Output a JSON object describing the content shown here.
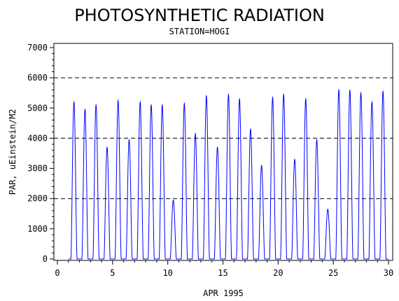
{
  "chart_data": {
    "type": "line",
    "title": "PHOTOSYNTHETIC RADIATION",
    "subtitle": "STATION=HOGI",
    "xlabel": "APR 1995",
    "ylabel": "PAR, uEinstein/M2",
    "xlim": [
      0,
      30
    ],
    "ylim": [
      0,
      7000
    ],
    "x_ticks": [
      0,
      5,
      10,
      15,
      20,
      25,
      30
    ],
    "y_ticks": [
      0,
      1000,
      2000,
      3000,
      4000,
      5000,
      6000,
      7000
    ],
    "reference_lines": [
      2000,
      4000,
      6000
    ],
    "series_color": "#0000ff",
    "series": [
      {
        "values_note": "daily peaks (x = day-of-month at local noon, y = peak PAR)",
        "x": [
          1.5,
          2.5,
          3.5,
          4.5,
          5.5,
          6.5,
          7.5,
          8.5,
          9.5,
          10.5,
          11.5,
          12.5,
          13.5,
          14.5,
          15.5,
          16.5,
          17.5,
          18.5,
          19.5,
          20.5,
          21.5,
          22.5,
          23.5,
          24.5,
          25.5,
          26.5,
          27.5,
          28.5,
          29.5
        ],
        "y": [
          5200,
          4950,
          5100,
          3700,
          5250,
          3950,
          5200,
          5100,
          5100,
          1950,
          5150,
          4150,
          5400,
          3700,
          5450,
          5300,
          4300,
          3100,
          5350,
          5450,
          3300,
          5300,
          3950,
          1650,
          5600,
          5600,
          5500,
          5200,
          5550
        ]
      }
    ]
  }
}
